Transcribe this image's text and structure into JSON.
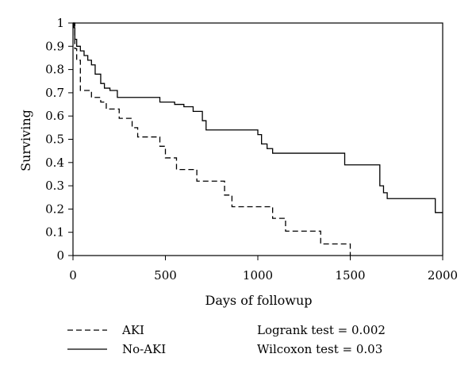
{
  "chart_data": {
    "type": "line",
    "step": true,
    "xlabel": "Days of followup",
    "ylabel": "Surviving",
    "xlim": [
      0,
      2000
    ],
    "ylim": [
      0,
      1
    ],
    "xticks": [
      "0",
      "500",
      "1000",
      "1500",
      "2000"
    ],
    "yticks": [
      "0",
      "0.1",
      "0.2",
      "0.3",
      "0.4",
      "0.5",
      "0.6",
      "0.7",
      "0.8",
      "0.9",
      "1"
    ],
    "grid": false,
    "legend_position": "bottom-left",
    "series": [
      {
        "name": "AKI",
        "line_style": "dashed",
        "x": [
          0,
          10,
          20,
          40,
          100,
          150,
          180,
          250,
          320,
          350,
          470,
          500,
          560,
          670,
          820,
          860,
          1080,
          1150,
          1340,
          1500
        ],
        "y": [
          1,
          0.89,
          0.84,
          0.71,
          0.68,
          0.66,
          0.63,
          0.59,
          0.55,
          0.51,
          0.47,
          0.42,
          0.37,
          0.32,
          0.26,
          0.21,
          0.16,
          0.105,
          0.05,
          0.0
        ]
      },
      {
        "name": "No-AKI",
        "line_style": "solid",
        "x": [
          0,
          5,
          10,
          20,
          40,
          60,
          80,
          100,
          120,
          150,
          170,
          200,
          240,
          470,
          550,
          600,
          650,
          700,
          720,
          1000,
          1020,
          1050,
          1080,
          1470,
          1660,
          1680,
          1700,
          1960,
          2000
        ],
        "y": [
          1,
          0.98,
          0.93,
          0.9,
          0.88,
          0.86,
          0.84,
          0.82,
          0.78,
          0.74,
          0.72,
          0.71,
          0.68,
          0.66,
          0.65,
          0.64,
          0.62,
          0.58,
          0.54,
          0.52,
          0.48,
          0.46,
          0.44,
          0.39,
          0.3,
          0.27,
          0.245,
          0.185,
          0.185
        ]
      }
    ]
  },
  "tests": {
    "logrank": "Logrank test = 0.002",
    "wilcoxon": "Wilcoxon test = 0.03"
  },
  "colors": {
    "line": "#000000",
    "background": "#ffffff"
  }
}
